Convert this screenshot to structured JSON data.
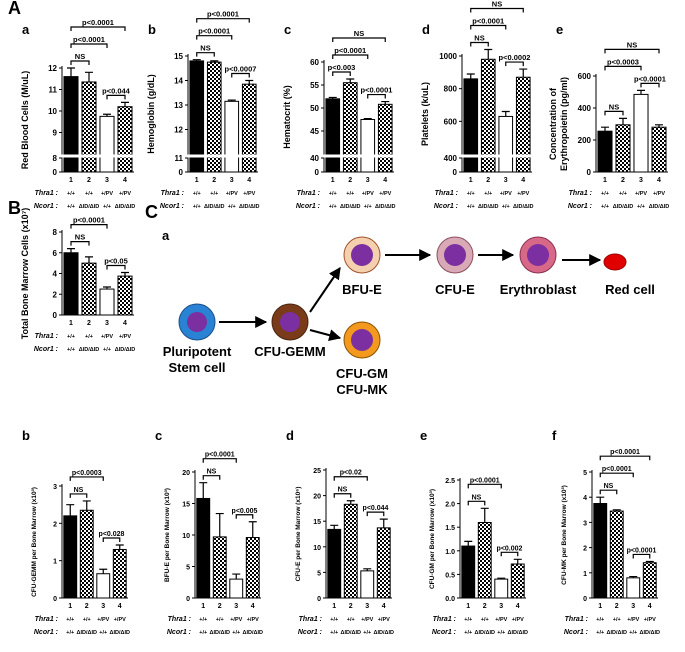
{
  "chart_data": [
    {
      "type": "bar",
      "section_label": "A",
      "panel_label": "a",
      "ylabel": "Red Blood Cells (M/uL)",
      "categories": [
        "1",
        "2",
        "3",
        "4"
      ],
      "genotypes": [
        {
          "label": "Thra1 :",
          "values": [
            "+/+",
            "+/+",
            "+/PV",
            "+/PV"
          ]
        },
        {
          "label": "Ncor1 :",
          "values": [
            "+/+",
            "ΔID/ΔID",
            "+/+",
            "ΔID/ΔID"
          ]
        }
      ],
      "values": [
        11.6,
        11.35,
        9.75,
        10.2
      ],
      "errors": [
        0.4,
        0.45,
        0.1,
        0.2
      ],
      "bar_styles": [
        "solid",
        "checker",
        "open",
        "checker"
      ],
      "ylim": [
        0,
        12
      ],
      "ybreak": 8,
      "yticks": [
        0,
        8,
        9,
        10,
        11,
        12
      ],
      "comparisons": [
        {
          "groups": [
            "1",
            "2"
          ],
          "label": "NS"
        },
        {
          "groups": [
            "1",
            "3"
          ],
          "label": "p<0.0001"
        },
        {
          "groups": [
            "1",
            "4"
          ],
          "label": "p<0.0001"
        },
        {
          "groups": [
            "3",
            "4"
          ],
          "label": "p<0.044"
        }
      ]
    },
    {
      "type": "bar",
      "panel_label": "b",
      "ylabel": "Hemoglobin (g/dL)",
      "categories": [
        "1",
        "2",
        "3",
        "4"
      ],
      "genotypes": [
        {
          "label": "Thra1 :",
          "values": [
            "+/+",
            "+/+",
            "+/PV",
            "+/PV"
          ]
        },
        {
          "label": "Ncor1 :",
          "values": [
            "+/+",
            "ΔID/ΔID",
            "+/+",
            "ΔID/ΔID"
          ]
        }
      ],
      "values": [
        14.8,
        14.75,
        13.15,
        13.85
      ],
      "errors": [
        0.05,
        0.05,
        0.05,
        0.15
      ],
      "bar_styles": [
        "solid",
        "checker",
        "open",
        "checker"
      ],
      "ylim": [
        0,
        15
      ],
      "ybreak": 11,
      "yticks": [
        0,
        11,
        12,
        13,
        14,
        15
      ],
      "comparisons": [
        {
          "groups": [
            "1",
            "2"
          ],
          "label": "NS"
        },
        {
          "groups": [
            "1",
            "3"
          ],
          "label": "p<0.0001"
        },
        {
          "groups": [
            "1",
            "4"
          ],
          "label": "p<0.0001"
        },
        {
          "groups": [
            "3",
            "4"
          ],
          "label": "p<0.0007"
        }
      ]
    },
    {
      "type": "bar",
      "panel_label": "c",
      "ylabel": "Hematocrit (%)",
      "categories": [
        "1",
        "2",
        "3",
        "4"
      ],
      "genotypes": [
        {
          "label": "Thra1 :",
          "values": [
            "+/+",
            "+/+",
            "+/PV",
            "+/PV"
          ]
        },
        {
          "label": "Ncor1 :",
          "values": [
            "+/+",
            "ΔID/ΔID",
            "+/+",
            "ΔID/ΔID"
          ]
        }
      ],
      "values": [
        52,
        55.5,
        47.5,
        50.8
      ],
      "errors": [
        0.3,
        0.8,
        0.2,
        0.6
      ],
      "bar_styles": [
        "solid",
        "checker",
        "open",
        "checker"
      ],
      "ylim": [
        0,
        60
      ],
      "ybreak": 40,
      "yticks": [
        0,
        40,
        45,
        50,
        55,
        60
      ],
      "comparisons": [
        {
          "groups": [
            "1",
            "2"
          ],
          "label": "p<0.003"
        },
        {
          "groups": [
            "1",
            "3"
          ],
          "label": "p<0.0001"
        },
        {
          "groups": [
            "1",
            "4"
          ],
          "label": "NS"
        },
        {
          "groups": [
            "3",
            "4"
          ],
          "label": "p<0.0001"
        }
      ]
    },
    {
      "type": "bar",
      "panel_label": "d",
      "ylabel": "Platelets (k/uL)",
      "categories": [
        "1",
        "2",
        "3",
        "4"
      ],
      "genotypes": [
        {
          "label": "Thra1 :",
          "values": [
            "+/+",
            "+/+",
            "+/PV",
            "+/PV"
          ]
        },
        {
          "label": "Ncor1 :",
          "values": [
            "+/+",
            "ΔID/ΔID",
            "+/+",
            "ΔID/ΔID"
          ]
        }
      ],
      "values": [
        860,
        980,
        630,
        870
      ],
      "errors": [
        30,
        60,
        30,
        50
      ],
      "bar_styles": [
        "solid",
        "checker",
        "open",
        "checker"
      ],
      "ylim": [
        0,
        1000
      ],
      "ybreak": 400,
      "yticks": [
        0,
        400,
        600,
        800,
        1000
      ],
      "comparisons": [
        {
          "groups": [
            "1",
            "2"
          ],
          "label": "NS"
        },
        {
          "groups": [
            "1",
            "3"
          ],
          "label": "p<0.0001"
        },
        {
          "groups": [
            "1",
            "4"
          ],
          "label": "NS"
        },
        {
          "groups": [
            "3",
            "4"
          ],
          "label": "p<0.0002"
        }
      ]
    },
    {
      "type": "bar",
      "panel_label": "e",
      "ylabel": [
        "Concentration of",
        "Erythropoietin (pg/ml)"
      ],
      "categories": [
        "1",
        "2",
        "3",
        "4"
      ],
      "genotypes": [
        {
          "label": "Thra1 :",
          "values": [
            "+/+",
            "+/+",
            "+/PV",
            "+/PV"
          ]
        },
        {
          "label": "Ncor1 :",
          "values": [
            "+/+",
            "ΔID/ΔID",
            "+/+",
            "ΔID/ΔID"
          ]
        }
      ],
      "values": [
        255,
        295,
        485,
        280
      ],
      "errors": [
        25,
        40,
        25,
        15
      ],
      "bar_styles": [
        "solid",
        "checker",
        "open",
        "checker"
      ],
      "ylim": [
        0,
        600
      ],
      "yticks": [
        0,
        200,
        400,
        600
      ],
      "comparisons": [
        {
          "groups": [
            "1",
            "2"
          ],
          "label": "NS"
        },
        {
          "groups": [
            "1",
            "3"
          ],
          "label": "p<0.0003"
        },
        {
          "groups": [
            "1",
            "4"
          ],
          "label": "NS"
        },
        {
          "groups": [
            "3",
            "4"
          ],
          "label": "p<0.0001"
        }
      ]
    },
    {
      "type": "bar",
      "panel_label": "B",
      "ylabel": "Total Bone Marrow Cells (x10⁷)",
      "categories": [
        "1",
        "2",
        "3",
        "4"
      ],
      "genotypes": [
        {
          "label": "Thra1 :",
          "values": [
            "+/+",
            "+/+",
            "+/PV",
            "+/PV"
          ]
        },
        {
          "label": "Ncor1 :",
          "values": [
            "+/+",
            "ΔID/ΔID",
            "+/+",
            "ΔID/ΔID"
          ]
        }
      ],
      "values": [
        6,
        5,
        2.5,
        3.75
      ],
      "errors": [
        0.4,
        0.6,
        0.2,
        0.35
      ],
      "bar_styles": [
        "solid",
        "checker",
        "open",
        "checker"
      ],
      "ylim": [
        0,
        8
      ],
      "yticks": [
        0,
        2,
        4,
        6,
        8
      ],
      "comparisons": [
        {
          "groups": [
            "1",
            "2"
          ],
          "label": "NS"
        },
        {
          "groups": [
            "1",
            "3"
          ],
          "label": "p<0.0001"
        },
        {
          "groups": [
            "3",
            "4"
          ],
          "label": "p<0.05"
        }
      ]
    },
    {
      "type": "bar",
      "panel_label": "b",
      "ylabel": "CFU-GEMM per Bone Marrow (x10³)",
      "categories": [
        "1",
        "2",
        "3",
        "4"
      ],
      "genotypes": [
        {
          "label": "Thra1 :",
          "values": [
            "+/+",
            "+/+",
            "+/PV",
            "+/PV"
          ]
        },
        {
          "label": "Ncor1 :",
          "values": [
            "+/+",
            "ΔID/ΔID",
            "+/+",
            "ΔID/ΔID"
          ]
        }
      ],
      "values": [
        2.2,
        2.35,
        0.65,
        1.3
      ],
      "errors": [
        0.3,
        0.25,
        0.12,
        0.12
      ],
      "bar_styles": [
        "solid",
        "checker",
        "open",
        "checker"
      ],
      "ylim": [
        0,
        3
      ],
      "yticks": [
        0,
        1,
        2,
        3
      ],
      "comparisons": [
        {
          "groups": [
            "1",
            "2"
          ],
          "label": "NS"
        },
        {
          "groups": [
            "1",
            "3"
          ],
          "label": "p<0.0003"
        },
        {
          "groups": [
            "3",
            "4"
          ],
          "label": "p<0.028"
        }
      ]
    },
    {
      "type": "bar",
      "panel_label": "c",
      "ylabel": "BFU-E per Bone Marrow (x10³)",
      "categories": [
        "1",
        "2",
        "3",
        "4"
      ],
      "genotypes": [
        {
          "label": "Thra1 :",
          "values": [
            "+/+",
            "+/+",
            "+/PV",
            "+/PV"
          ]
        },
        {
          "label": "Ncor1 :",
          "values": [
            "+/+",
            "ΔID/ΔID",
            "+/+",
            "ΔID/ΔID"
          ]
        }
      ],
      "values": [
        15.8,
        9.7,
        3,
        9.6
      ],
      "errors": [
        2.5,
        3.7,
        0.8,
        2.5
      ],
      "bar_styles": [
        "solid",
        "checker",
        "open",
        "checker"
      ],
      "ylim": [
        0,
        20
      ],
      "yticks": [
        0,
        5,
        10,
        15,
        20
      ],
      "comparisons": [
        {
          "groups": [
            "1",
            "2"
          ],
          "label": "NS"
        },
        {
          "groups": [
            "1",
            "3"
          ],
          "label": "p<0.0001"
        },
        {
          "groups": [
            "3",
            "4"
          ],
          "label": "p<0.005"
        }
      ]
    },
    {
      "type": "bar",
      "panel_label": "d",
      "ylabel": "CFU-E per Bone Marrow (x10⁶)",
      "categories": [
        "1",
        "2",
        "3",
        "4"
      ],
      "genotypes": [
        {
          "label": "Thra1 :",
          "values": [
            "+/+",
            "+/+",
            "+/PV",
            "+/PV"
          ]
        },
        {
          "label": "Ncor1 :",
          "values": [
            "+/+",
            "ΔID/ΔID",
            "+/+",
            "ΔID/ΔID"
          ]
        }
      ],
      "values": [
        13.4,
        18.3,
        5.3,
        13.7
      ],
      "errors": [
        0.8,
        0.7,
        0.4,
        1.7
      ],
      "bar_styles": [
        "solid",
        "checker",
        "open",
        "checker"
      ],
      "ylim": [
        0,
        25
      ],
      "yticks": [
        0,
        5,
        10,
        15,
        20,
        25
      ],
      "comparisons": [
        {
          "groups": [
            "1",
            "2"
          ],
          "label": "NS"
        },
        {
          "groups": [
            "1",
            "3"
          ],
          "label": "p<0.02"
        },
        {
          "groups": [
            "3",
            "4"
          ],
          "label": "p<0.044"
        }
      ]
    },
    {
      "type": "bar",
      "panel_label": "e",
      "ylabel": "CFU-GM per Bone Marrow (x10³)",
      "categories": [
        "1",
        "2",
        "3",
        "4"
      ],
      "genotypes": [
        {
          "label": "Thra1 :",
          "values": [
            "+/+",
            "+/+",
            "+/PV",
            "+/PV"
          ]
        },
        {
          "label": "Ncor1 :",
          "values": [
            "+/+",
            "ΔID/ΔID",
            "+/+",
            "ΔID/ΔID"
          ]
        }
      ],
      "values": [
        1.1,
        1.6,
        0.4,
        0.72
      ],
      "errors": [
        0.1,
        0.3,
        0.02,
        0.1
      ],
      "bar_styles": [
        "solid",
        "checker",
        "open",
        "checker"
      ],
      "ylim": [
        0,
        2.5
      ],
      "yticks": [
        {
          "value": 0,
          "label": "0.0"
        },
        0.5,
        {
          "value": 1,
          "label": "1.0"
        },
        1.5,
        {
          "value": 2,
          "label": "2.0"
        },
        2.5
      ],
      "comparisons": [
        {
          "groups": [
            "1",
            "2"
          ],
          "label": "NS"
        },
        {
          "groups": [
            "1",
            "3"
          ],
          "label": "p<0.0001"
        },
        {
          "groups": [
            "3",
            "4"
          ],
          "label": "p<0.002"
        }
      ]
    },
    {
      "type": "bar",
      "panel_label": "f",
      "ylabel": "CFU-MK per Bone Marrow (x10³)",
      "categories": [
        "1",
        "2",
        "3",
        "4"
      ],
      "genotypes": [
        {
          "label": "Thra1 :",
          "values": [
            "+/+",
            "+/+",
            "+/PV",
            "+/PV"
          ]
        },
        {
          "label": "Ncor1 :",
          "values": [
            "+/+",
            "ΔID/ΔID",
            "+/+",
            "ΔID/ΔID"
          ]
        }
      ],
      "values": [
        3.75,
        3.45,
        0.8,
        1.4
      ],
      "errors": [
        0.25,
        0.05,
        0.05,
        0.05
      ],
      "bar_styles": [
        "solid",
        "checker",
        "open",
        "checker"
      ],
      "ylim": [
        0,
        5
      ],
      "yticks": [
        0,
        1,
        2,
        3,
        4,
        5
      ],
      "comparisons": [
        {
          "groups": [
            "1",
            "2"
          ],
          "label": "NS"
        },
        {
          "groups": [
            "1",
            "3"
          ],
          "label": "p<0.0001"
        },
        {
          "groups": [
            "1",
            "4"
          ],
          "label": "p<0.0001"
        },
        {
          "groups": [
            "3",
            "4"
          ],
          "label": "p<0.0001"
        }
      ]
    }
  ],
  "diagram": {
    "panel_label": "C",
    "sub_label": "a",
    "nodes": [
      {
        "lines": [
          "Pluripotent",
          "Stem cell"
        ]
      },
      {
        "lines": [
          "CFU-GEMM"
        ]
      },
      {
        "lines": [
          "BFU-E"
        ]
      },
      {
        "lines": [
          "CFU-GM",
          "CFU-MK"
        ]
      },
      {
        "lines": [
          "CFU-E"
        ]
      },
      {
        "lines": [
          "Erythroblast"
        ]
      },
      {
        "lines": [
          "Red cell"
        ]
      }
    ]
  }
}
